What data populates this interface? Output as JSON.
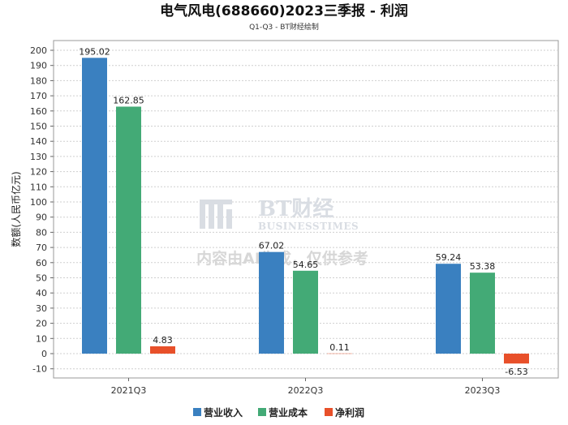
{
  "chart_data": {
    "type": "bar",
    "title": "电气风电(688660)2023三季报 - 利润",
    "subtitle": "Q1-Q3 - BT财经绘制",
    "ylabel": "数额(人民币亿元)",
    "xlabel": "",
    "ylim": [
      -10,
      200
    ],
    "ytick_step": 10,
    "grid": true,
    "categories": [
      "2021Q3",
      "2022Q3",
      "2023Q3"
    ],
    "series": [
      {
        "name": "营业收入",
        "color": "#3a80c0",
        "values": [
          195.02,
          67.02,
          59.24
        ],
        "labels": [
          "195.02",
          "67.02",
          "59.24"
        ]
      },
      {
        "name": "营业成本",
        "color": "#43aa76",
        "values": [
          162.85,
          54.65,
          53.38
        ],
        "labels": [
          "162.85",
          "54.65",
          "53.38"
        ]
      },
      {
        "name": "净利润",
        "color": "#e8502a",
        "values": [
          4.83,
          0.11,
          -6.53
        ],
        "labels": [
          "4.83",
          "0.11",
          "-6.53"
        ]
      }
    ],
    "legend_position": "bottom-center"
  },
  "watermark": {
    "brand": "BT财经",
    "brand_en": "BUSINESSTIMES",
    "note": "内容由AI生成，仅供参考"
  }
}
